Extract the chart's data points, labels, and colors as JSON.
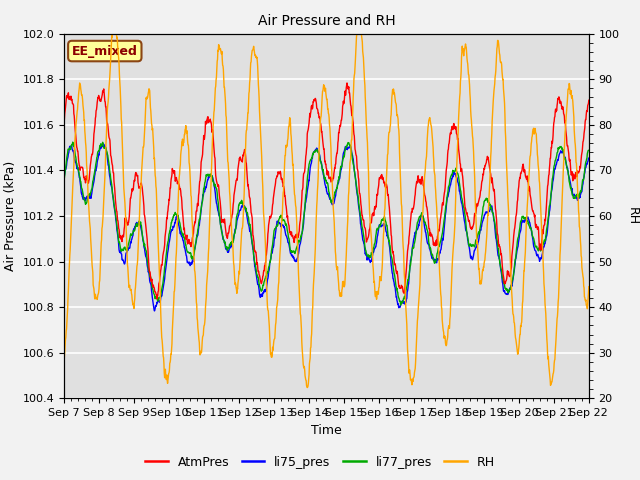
{
  "title": "Air Pressure and RH",
  "xlabel": "Time",
  "ylabel_left": "Air Pressure (kPa)",
  "ylabel_right": "RH",
  "ylim_left": [
    100.4,
    102.0
  ],
  "ylim_right": [
    20,
    100
  ],
  "yticks_left": [
    100.4,
    100.6,
    100.8,
    101.0,
    101.2,
    101.4,
    101.6,
    101.8,
    102.0
  ],
  "yticks_right": [
    20,
    30,
    40,
    50,
    60,
    70,
    80,
    90,
    100
  ],
  "x_labels": [
    "Sep 7",
    "Sep 8",
    "Sep 9",
    "Sep 10",
    "Sep 11",
    "Sep 12",
    "Sep 13",
    "Sep 14",
    "Sep 15",
    "Sep 16",
    "Sep 17",
    "Sep 18",
    "Sep 19",
    "Sep 20",
    "Sep 21",
    "Sep 22"
  ],
  "annotation_text": "EE_mixed",
  "annotation_color": "#8B0000",
  "annotation_bg": "#FFFF99",
  "annotation_border": "#8B4513",
  "colors": {
    "AtmPres": "#FF0000",
    "li75_pres": "#0000FF",
    "li77_pres": "#00AA00",
    "RH": "#FFA500"
  },
  "background_color": "#E0E0E0",
  "grid_color": "#FFFFFF",
  "fig_bg": "#F2F2F2"
}
